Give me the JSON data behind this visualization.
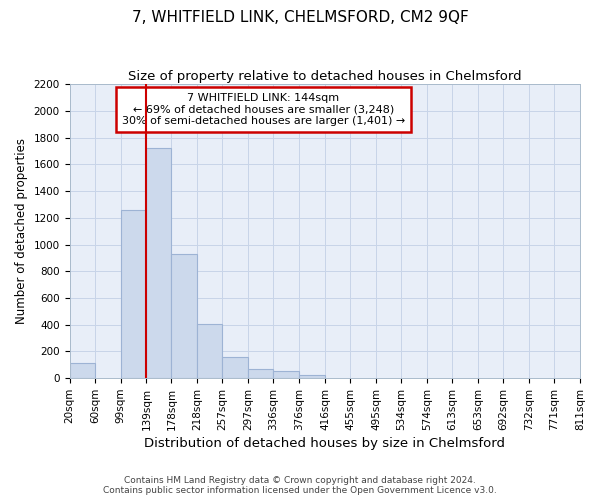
{
  "title": "7, WHITFIELD LINK, CHELMSFORD, CM2 9QF",
  "subtitle": "Size of property relative to detached houses in Chelmsford",
  "xlabel": "Distribution of detached houses by size in Chelmsford",
  "ylabel": "Number of detached properties",
  "footnote1": "Contains HM Land Registry data © Crown copyright and database right 2024.",
  "footnote2": "Contains public sector information licensed under the Open Government Licence v3.0.",
  "annotation_line1": "7 WHITFIELD LINK: 144sqm",
  "annotation_line2": "← 69% of detached houses are smaller (3,248)",
  "annotation_line3": "30% of semi-detached houses are larger (1,401) →",
  "bar_left_edges": [
    20,
    60,
    99,
    139,
    178,
    218,
    257,
    297,
    336,
    376,
    416,
    455,
    495,
    534,
    574,
    613,
    653,
    692,
    732,
    771
  ],
  "bar_widths": [
    40,
    39,
    40,
    39,
    40,
    39,
    40,
    39,
    40,
    40,
    39,
    40,
    39,
    40,
    39,
    40,
    39,
    40,
    39,
    40
  ],
  "bar_heights": [
    115,
    0,
    1260,
    1720,
    930,
    405,
    155,
    70,
    55,
    25,
    0,
    0,
    0,
    0,
    0,
    0,
    0,
    0,
    0,
    0
  ],
  "bar_color": "#ccd9ec",
  "bar_edge_color": "#9db3d4",
  "vline_color": "#cc0000",
  "vline_x": 139,
  "box_color": "#cc0000",
  "ylim": [
    0,
    2200
  ],
  "yticks": [
    0,
    200,
    400,
    600,
    800,
    1000,
    1200,
    1400,
    1600,
    1800,
    2000,
    2200
  ],
  "xtick_labels": [
    "20sqm",
    "60sqm",
    "99sqm",
    "139sqm",
    "178sqm",
    "218sqm",
    "257sqm",
    "297sqm",
    "336sqm",
    "376sqm",
    "416sqm",
    "455sqm",
    "495sqm",
    "534sqm",
    "574sqm",
    "613sqm",
    "653sqm",
    "692sqm",
    "732sqm",
    "771sqm",
    "811sqm"
  ],
  "grid_color": "#c8d4e8",
  "bg_color": "#e8eef8",
  "title_fontsize": 11,
  "subtitle_fontsize": 9.5,
  "xlabel_fontsize": 9.5,
  "ylabel_fontsize": 8.5,
  "tick_fontsize": 7.5,
  "annotation_fontsize": 8,
  "footnote_fontsize": 6.5
}
